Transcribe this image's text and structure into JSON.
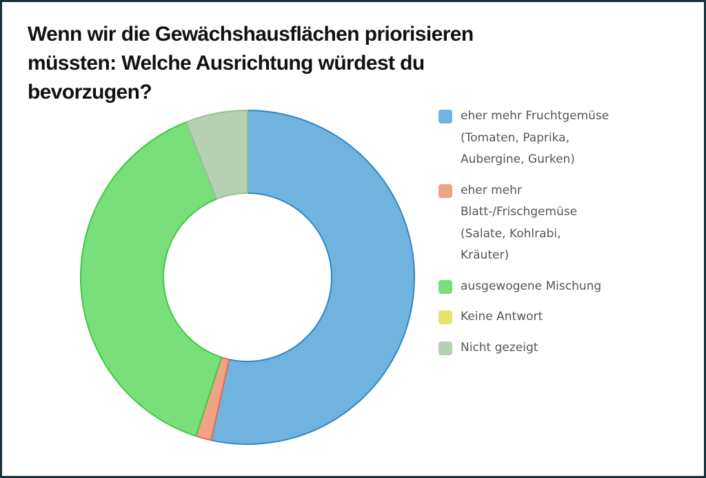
{
  "chart_data": {
    "type": "pie",
    "donut": true,
    "title": "Wenn wir die Gewächshausflächen priorisieren müssten: Welche Ausrichtung würdest du bevorzugen?",
    "categories": [
      "eher mehr Fruchtgemüse (Tomaten, Paprika, Aubergine, Gurken)",
      "eher mehr Blatt-/Frischgemüse (Salate, Kohlrabi, Kräuter)",
      "ausgewogene Mischung",
      "Keine Antwort",
      "Nicht gezeigt"
    ],
    "values": [
      53.5,
      1.5,
      39,
      0,
      6
    ],
    "colors": [
      "#71b3df",
      "#f0a286",
      "#78df7a",
      "#e3e36e",
      "#b5d1b2"
    ],
    "stroke_colors": [
      "#2b86c8",
      "#e26a4a",
      "#3fc93f",
      "#c9c93b",
      "#9cbc98"
    ],
    "legend_position": "right"
  }
}
